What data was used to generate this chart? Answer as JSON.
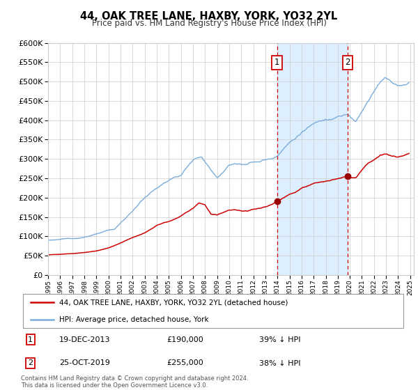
{
  "title": "44, OAK TREE LANE, HAXBY, YORK, YO32 2YL",
  "subtitle": "Price paid vs. HM Land Registry's House Price Index (HPI)",
  "legend_line1": "44, OAK TREE LANE, HAXBY, YORK, YO32 2YL (detached house)",
  "legend_line2": "HPI: Average price, detached house, York",
  "annotation1_date": "19-DEC-2013",
  "annotation1_price": "£190,000",
  "annotation1_pct": "39% ↓ HPI",
  "annotation2_date": "25-OCT-2019",
  "annotation2_price": "£255,000",
  "annotation2_pct": "38% ↓ HPI",
  "footer": "Contains HM Land Registry data © Crown copyright and database right 2024.\nThis data is licensed under the Open Government Licence v3.0.",
  "hpi_color": "#7aaddc",
  "price_color": "#cc0000",
  "marker_color": "#990000",
  "vline_color": "#cc0000",
  "shade_color": "#ddeeff",
  "annotation_box_color": "#cc0000",
  "bg_color": "#f5f5f5",
  "ylim": [
    0,
    600000
  ],
  "xlim_left": 1995.0,
  "xlim_right": 2025.3,
  "sale1_year": 2013.96,
  "sale1_value": 190000,
  "sale2_year": 2019.81,
  "sale2_value": 255000,
  "hpi_anchors": [
    [
      1995.0,
      90000
    ],
    [
      1996.0,
      92000
    ],
    [
      1997.0,
      94000
    ],
    [
      1998.0,
      98000
    ],
    [
      1999.0,
      105000
    ],
    [
      2000.0,
      115000
    ],
    [
      2000.5,
      118000
    ],
    [
      2001.0,
      135000
    ],
    [
      2002.0,
      165000
    ],
    [
      2003.0,
      200000
    ],
    [
      2004.0,
      225000
    ],
    [
      2005.0,
      245000
    ],
    [
      2006.0,
      258000
    ],
    [
      2007.0,
      295000
    ],
    [
      2007.7,
      308000
    ],
    [
      2008.5,
      270000
    ],
    [
      2009.0,
      252000
    ],
    [
      2009.5,
      265000
    ],
    [
      2010.0,
      283000
    ],
    [
      2010.5,
      290000
    ],
    [
      2011.0,
      287000
    ],
    [
      2011.5,
      288000
    ],
    [
      2012.0,
      291000
    ],
    [
      2012.5,
      293000
    ],
    [
      2013.0,
      298000
    ],
    [
      2013.5,
      302000
    ],
    [
      2013.96,
      310000
    ],
    [
      2014.5,
      325000
    ],
    [
      2015.0,
      342000
    ],
    [
      2015.5,
      355000
    ],
    [
      2016.0,
      368000
    ],
    [
      2016.5,
      378000
    ],
    [
      2017.0,
      390000
    ],
    [
      2017.5,
      398000
    ],
    [
      2018.0,
      405000
    ],
    [
      2018.5,
      408000
    ],
    [
      2019.0,
      412000
    ],
    [
      2019.81,
      413000
    ],
    [
      2020.0,
      408000
    ],
    [
      2020.5,
      395000
    ],
    [
      2021.0,
      420000
    ],
    [
      2021.5,
      450000
    ],
    [
      2022.0,
      480000
    ],
    [
      2022.5,
      498000
    ],
    [
      2023.0,
      510000
    ],
    [
      2023.5,
      500000
    ],
    [
      2024.0,
      490000
    ],
    [
      2024.5,
      495000
    ],
    [
      2024.9,
      500000
    ]
  ],
  "price_anchors": [
    [
      1995.0,
      52000
    ],
    [
      1996.0,
      53500
    ],
    [
      1997.0,
      55000
    ],
    [
      1998.0,
      58000
    ],
    [
      1999.0,
      62000
    ],
    [
      2000.0,
      70000
    ],
    [
      2001.0,
      82000
    ],
    [
      2002.0,
      97000
    ],
    [
      2003.0,
      108000
    ],
    [
      2004.0,
      128000
    ],
    [
      2005.0,
      138000
    ],
    [
      2006.0,
      152000
    ],
    [
      2007.0,
      172000
    ],
    [
      2007.5,
      187000
    ],
    [
      2008.0,
      182000
    ],
    [
      2008.5,
      158000
    ],
    [
      2009.0,
      155000
    ],
    [
      2009.5,
      162000
    ],
    [
      2010.0,
      168000
    ],
    [
      2010.5,
      170000
    ],
    [
      2011.0,
      166000
    ],
    [
      2011.5,
      165000
    ],
    [
      2012.0,
      170000
    ],
    [
      2012.5,
      172000
    ],
    [
      2013.0,
      176000
    ],
    [
      2013.5,
      181000
    ],
    [
      2013.96,
      190000
    ],
    [
      2014.5,
      198000
    ],
    [
      2015.0,
      207000
    ],
    [
      2015.5,
      215000
    ],
    [
      2016.0,
      225000
    ],
    [
      2016.5,
      230000
    ],
    [
      2017.0,
      236000
    ],
    [
      2017.5,
      240000
    ],
    [
      2018.0,
      242000
    ],
    [
      2018.5,
      245000
    ],
    [
      2019.0,
      248000
    ],
    [
      2019.81,
      255000
    ],
    [
      2020.0,
      253000
    ],
    [
      2020.5,
      252000
    ],
    [
      2021.0,
      272000
    ],
    [
      2021.5,
      288000
    ],
    [
      2022.0,
      298000
    ],
    [
      2022.5,
      308000
    ],
    [
      2023.0,
      313000
    ],
    [
      2023.5,
      308000
    ],
    [
      2024.0,
      305000
    ],
    [
      2024.5,
      310000
    ],
    [
      2024.9,
      315000
    ]
  ]
}
